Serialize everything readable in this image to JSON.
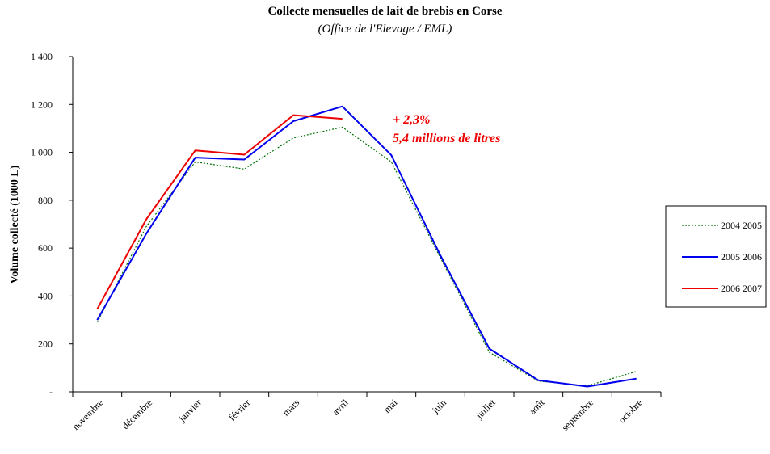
{
  "chart_data": {
    "type": "line",
    "title": "Collecte mensuelles de lait de brebis en Corse",
    "subtitle": "(Office de l'Elevage / EML)",
    "ylabel": "Volume collecté (1000 L)",
    "xlabel": "",
    "ylim": [
      0,
      1400
    ],
    "yticks": [
      0,
      200,
      400,
      600,
      800,
      1000,
      1200,
      1400
    ],
    "ytick_labels": [
      "-",
      "200",
      "400",
      "600",
      "800",
      "1 000",
      "1 200",
      "1 400"
    ],
    "categories": [
      "novembre",
      "décembre",
      "janvier",
      "février",
      "mars",
      "avril",
      "mai",
      "juin",
      "juillet",
      "août",
      "septembre",
      "octobre"
    ],
    "grid": false,
    "legend_position": "right",
    "series": [
      {
        "name": "2004 2005",
        "color": "#007000",
        "style": "dotted",
        "values": [
          290,
          690,
          960,
          930,
          1060,
          1105,
          960,
          560,
          165,
          45,
          25,
          85
        ]
      },
      {
        "name": "2005 2006",
        "color": "#0000ee",
        "style": "solid",
        "values": [
          300,
          660,
          978,
          970,
          1130,
          1192,
          988,
          570,
          180,
          48,
          22,
          55
        ]
      },
      {
        "name": "2006 2007",
        "color": "#ee0000",
        "style": "solid",
        "values": [
          345,
          720,
          1008,
          990,
          1155,
          1140,
          null,
          null,
          null,
          null,
          null,
          null
        ]
      }
    ],
    "annotations": [
      {
        "text": "+ 2,3%",
        "color": "#ee0000"
      },
      {
        "text": "5,4 millions de litres",
        "color": "#ee0000"
      }
    ]
  }
}
